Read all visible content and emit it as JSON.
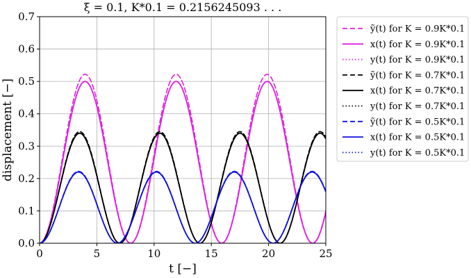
{
  "chart_data": {
    "type": "line",
    "title": "ξ = 0.1,    K*0.1 = 0.2156245093 . . .",
    "xlabel": "t   [−]",
    "ylabel": "displacement   [−]",
    "xlim": [
      0,
      25
    ],
    "ylim": [
      0,
      0.7
    ],
    "xticks": [
      "0",
      "5",
      "10",
      "15",
      "20",
      "25"
    ],
    "yticks": [
      "0.0",
      "0.1",
      "0.2",
      "0.3",
      "0.4",
      "0.5",
      "0.6",
      "0.7"
    ],
    "grid": true,
    "legend_position": "outside-right",
    "series": [
      {
        "name": "ỹ(t) for K = 0.9K*0.1",
        "color": "#e020e0",
        "style": "dashed",
        "amplitude": 0.522,
        "period": 7.95,
        "peak_t": [
          4.1,
          12.05,
          20.0
        ]
      },
      {
        "name": "x(t) for K = 0.9K*0.1",
        "color": "#e020e0",
        "style": "solid",
        "amplitude": 0.5,
        "period": 7.95,
        "peak_t": [
          4.1,
          12.05,
          20.0
        ]
      },
      {
        "name": "y(t) for K = 0.9K*0.1",
        "color": "#e020e0",
        "style": "dotted",
        "amplitude": 0.5,
        "period": 7.95,
        "peak_t": [
          4.1,
          12.05,
          20.0
        ]
      },
      {
        "name": "ỹ(t) for K = 0.7K*0.1",
        "color": "#000000",
        "style": "dashed",
        "amplitude": 0.345,
        "period": 7.0,
        "peak_t": [
          3.5,
          10.5,
          17.5
        ]
      },
      {
        "name": "x(t) for K = 0.7K*0.1",
        "color": "#000000",
        "style": "solid",
        "amplitude": 0.34,
        "period": 7.0,
        "peak_t": [
          3.5,
          10.5,
          17.5
        ]
      },
      {
        "name": "y(t) for K = 0.7K*0.1",
        "color": "#000000",
        "style": "dotted",
        "amplitude": 0.34,
        "period": 7.0,
        "peak_t": [
          3.5,
          10.5,
          17.5
        ]
      },
      {
        "name": "ỹ(t) for K = 0.5K*0.1",
        "color": "#1010e0",
        "style": "dashed",
        "amplitude": 0.222,
        "period": 6.8,
        "peak_t": [
          3.4,
          10.2,
          17.0,
          23.8
        ]
      },
      {
        "name": "x(t) for K = 0.5K*0.1",
        "color": "#1010e0",
        "style": "solid",
        "amplitude": 0.22,
        "period": 6.8,
        "peak_t": [
          3.4,
          10.2,
          17.0,
          23.8
        ]
      },
      {
        "name": "y(t) for K = 0.5K*0.1",
        "color": "#1010e0",
        "style": "dotted",
        "amplitude": 0.22,
        "period": 6.8,
        "peak_t": [
          3.4,
          10.2,
          17.0,
          23.8
        ]
      }
    ]
  }
}
